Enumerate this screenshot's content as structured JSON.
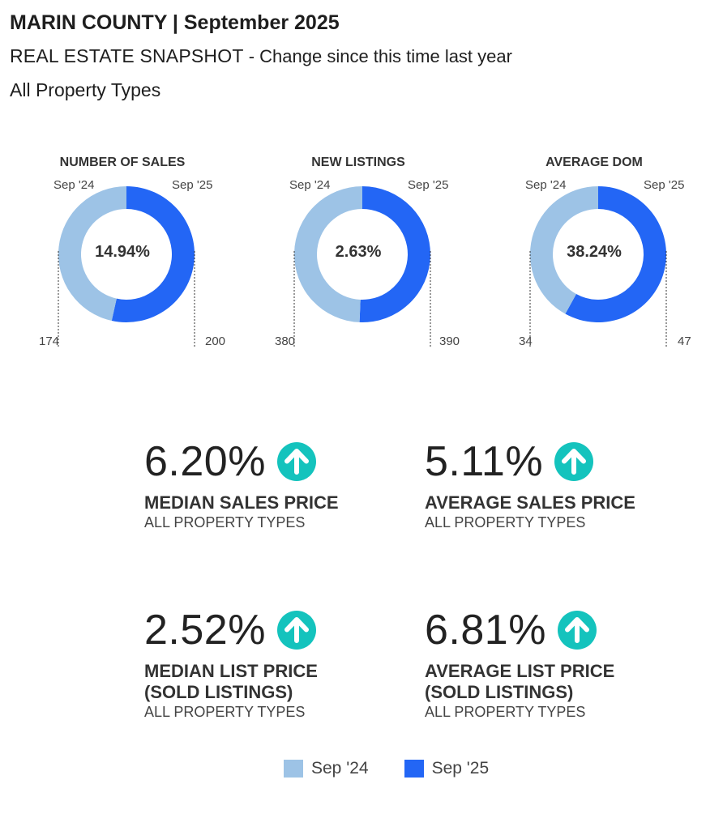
{
  "header": {
    "title": "MARIN COUNTY | September 2025",
    "subtitle_main": "REAL ESTATE SNAPSHOT",
    "subtitle_rest": " - Change since this time last year",
    "property_types": "All Property Types"
  },
  "colors": {
    "prev": "#9DC3E6",
    "cur": "#2366F5",
    "arrow": "#14C3BD"
  },
  "chart_data": [
    {
      "type": "pie",
      "title": "NUMBER OF SALES",
      "labels": [
        "Sep '24",
        "Sep '25"
      ],
      "values": [
        174,
        200
      ],
      "center_label": "14.94%"
    },
    {
      "type": "pie",
      "title": "NEW LISTINGS",
      "labels": [
        "Sep '24",
        "Sep '25"
      ],
      "values": [
        380,
        390
      ],
      "center_label": "2.63%"
    },
    {
      "type": "pie",
      "title": "AVERAGE DOM",
      "labels": [
        "Sep '24",
        "Sep '25"
      ],
      "values": [
        34,
        47
      ],
      "center_label": "38.24%"
    }
  ],
  "metrics": [
    {
      "pct": "6.20%",
      "label1": "MEDIAN SALES PRICE",
      "label2": "",
      "sub": "ALL PROPERTY TYPES",
      "direction": "up"
    },
    {
      "pct": "5.11%",
      "label1": "AVERAGE SALES PRICE",
      "label2": "",
      "sub": "ALL PROPERTY TYPES",
      "direction": "up"
    },
    {
      "pct": "2.52%",
      "label1": "MEDIAN LIST PRICE",
      "label2": "(SOLD LISTINGS)",
      "sub": "ALL PROPERTY TYPES",
      "direction": "up"
    },
    {
      "pct": "6.81%",
      "label1": "AVERAGE LIST PRICE",
      "label2": "(SOLD LISTINGS)",
      "sub": "ALL PROPERTY TYPES",
      "direction": "up"
    }
  ],
  "legend": {
    "prev": "Sep '24",
    "cur": "Sep '25"
  }
}
